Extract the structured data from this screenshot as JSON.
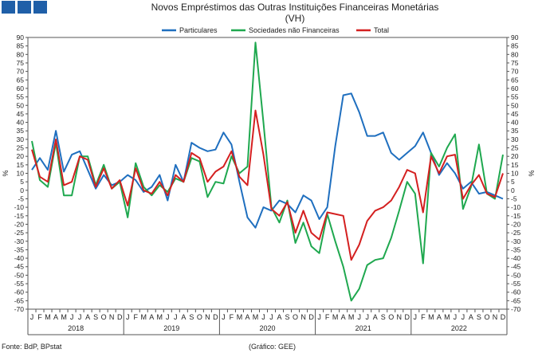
{
  "chart_data": {
    "type": "line",
    "title": "Novos Empréstimos das Outras Instituições Financeiras Monetárias",
    "subtitle": "(VH)",
    "ylabel_left": "%",
    "ylabel_right": "%",
    "ylim": [
      -70,
      90
    ],
    "ytick_step": 5,
    "grid": false,
    "legend_placement": "top-center",
    "month_labels": [
      "J",
      "F",
      "M",
      "A",
      "M",
      "J",
      "J",
      "A",
      "S",
      "O",
      "N",
      "D"
    ],
    "years": [
      "2018",
      "2019",
      "2020",
      "2021",
      "2022"
    ],
    "series": [
      {
        "name": "Particulares",
        "color": "#1f6fbf",
        "values": [
          12,
          19,
          12,
          35,
          11,
          21,
          23,
          12,
          1,
          9,
          3,
          5,
          9,
          6,
          -1,
          2,
          9,
          -6,
          15,
          5,
          28,
          25,
          23,
          24,
          34,
          27,
          5,
          -16,
          -22,
          -10,
          -12,
          -6,
          -8,
          -13,
          -3,
          -6,
          -17,
          -10,
          26,
          56,
          57,
          46,
          32,
          32,
          34,
          22,
          18,
          22,
          26,
          34,
          22,
          9,
          16,
          10,
          1,
          5,
          -2,
          -1,
          -3,
          -5
        ]
      },
      {
        "name": "Sociedades não Financeiras",
        "color": "#1fa84f",
        "values": [
          29,
          6,
          2,
          28,
          -3,
          -3,
          20,
          20,
          3,
          15,
          1,
          5,
          -16,
          16,
          2,
          -3,
          3,
          -1,
          7,
          5,
          19,
          17,
          -4,
          5,
          4,
          20,
          10,
          14,
          87,
          40,
          -10,
          -19,
          -6,
          -31,
          -19,
          -33,
          -37,
          -14,
          -30,
          -45,
          -65,
          -58,
          -44,
          -41,
          -40,
          -28,
          -12,
          5,
          -2,
          -43,
          22,
          14,
          25,
          33,
          -11,
          2,
          27,
          -2,
          -5,
          21
        ]
      },
      {
        "name": "Total",
        "color": "#d42020",
        "values": [
          24,
          8,
          5,
          30,
          3,
          5,
          20,
          18,
          2,
          13,
          1,
          6,
          -9,
          13,
          0,
          -2,
          5,
          -3,
          9,
          5,
          22,
          19,
          5,
          11,
          14,
          23,
          8,
          3,
          47,
          21,
          -11,
          -15,
          -7,
          -25,
          -12,
          -25,
          -29,
          -13,
          -14,
          -15,
          -41,
          -32,
          -18,
          -12,
          -10,
          -6,
          2,
          12,
          10,
          -13,
          20,
          10,
          20,
          21,
          -5,
          3,
          9,
          -2,
          -4,
          10
        ]
      }
    ]
  },
  "legend": {
    "items": [
      "Particulares",
      "Sociedades não Financeiras",
      "Total"
    ]
  },
  "footer": {
    "source": "Fonte: BdP, BPstat",
    "credit": "(Gráfico: GEE)"
  },
  "logo": {
    "squares": 3,
    "color": "#1f5fa8"
  }
}
